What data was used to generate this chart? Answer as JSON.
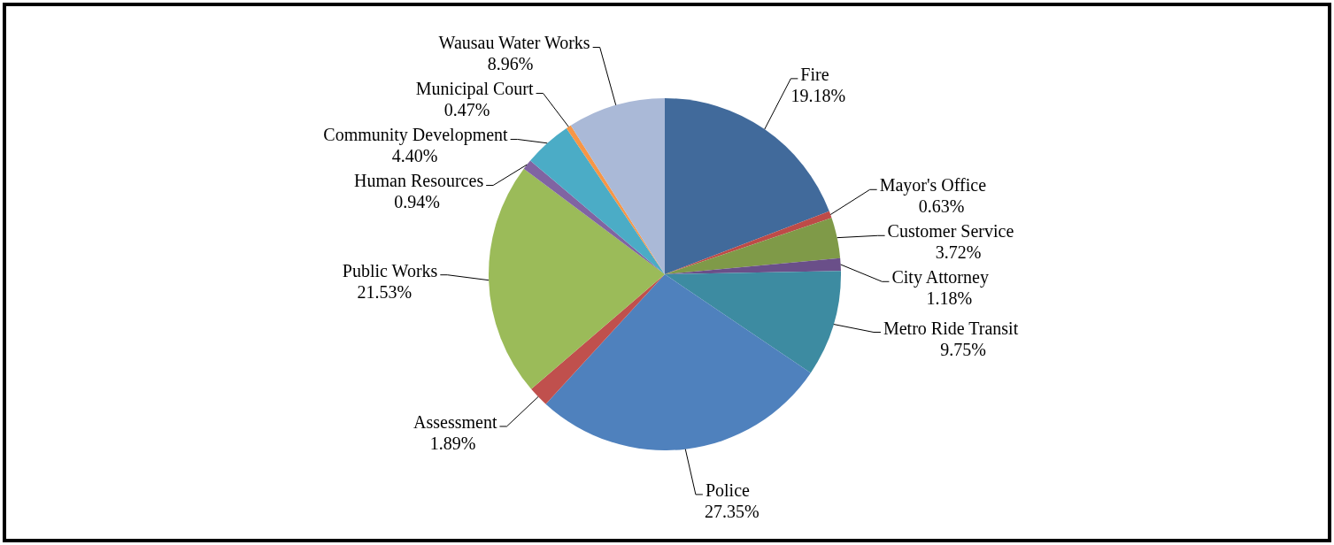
{
  "chart_data": {
    "type": "pie",
    "categories": [
      "Fire",
      "Mayor's Office",
      "Customer Service",
      "City Attorney",
      "Metro Ride Transit",
      "Police",
      "Assessment",
      "Public Works",
      "Human Resources",
      "Community Development",
      "Municipal Court",
      "Wausau Water Works"
    ],
    "values": [
      19.18,
      0.63,
      3.72,
      1.18,
      9.75,
      27.35,
      1.89,
      21.53,
      0.94,
      4.4,
      0.47,
      8.96
    ],
    "value_labels": [
      "19.18%",
      "0.63%",
      "3.72%",
      "1.18%",
      "9.75%",
      "27.35%",
      "1.89%",
      "21.53%",
      "0.94%",
      "4.40%",
      "0.47%",
      "8.96%"
    ],
    "colors": [
      "#416a9b",
      "#be4b48",
      "#7f9a48",
      "#6a4f89",
      "#3d8ba1",
      "#4f81bd",
      "#c0504d",
      "#9bbb59",
      "#8064a2",
      "#4bacc6",
      "#f79646",
      "#aab9d7"
    ]
  }
}
